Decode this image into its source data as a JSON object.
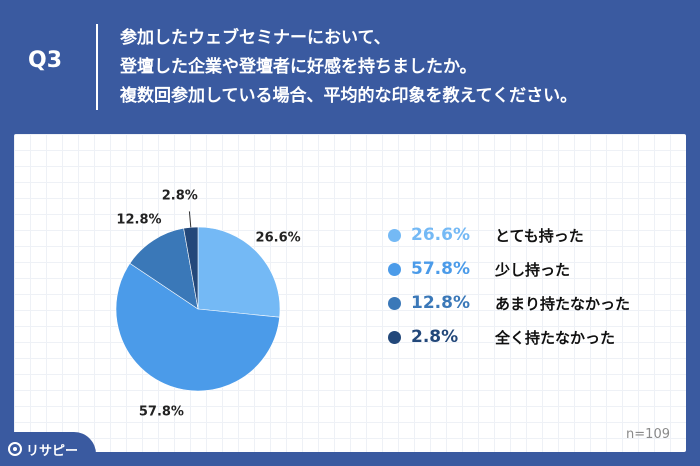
{
  "header": {
    "q_label": "Q3",
    "question_lines": [
      "参加したウェブセミナーにおいて、",
      "登壇した企業や登壇者に好感を持ちましたか。",
      "複数回参加している場合、平均的な印象を教えてください。"
    ]
  },
  "chart_data": {
    "type": "pie",
    "categories": [
      "とても持った",
      "少し持った",
      "あまり持たなかった",
      "全く持たなかった"
    ],
    "values": [
      26.6,
      57.8,
      12.8,
      2.8
    ],
    "value_labels": [
      "26.6%",
      "57.8%",
      "12.8%",
      "2.8%"
    ],
    "colors": [
      "#74b9f5",
      "#4b9be9",
      "#3a78b8",
      "#23487a"
    ],
    "start_angle_deg": 0,
    "direction": "clockwise",
    "legend_position": "right"
  },
  "footer": {
    "n_label": "n=109",
    "logo_text": "リサピー"
  }
}
